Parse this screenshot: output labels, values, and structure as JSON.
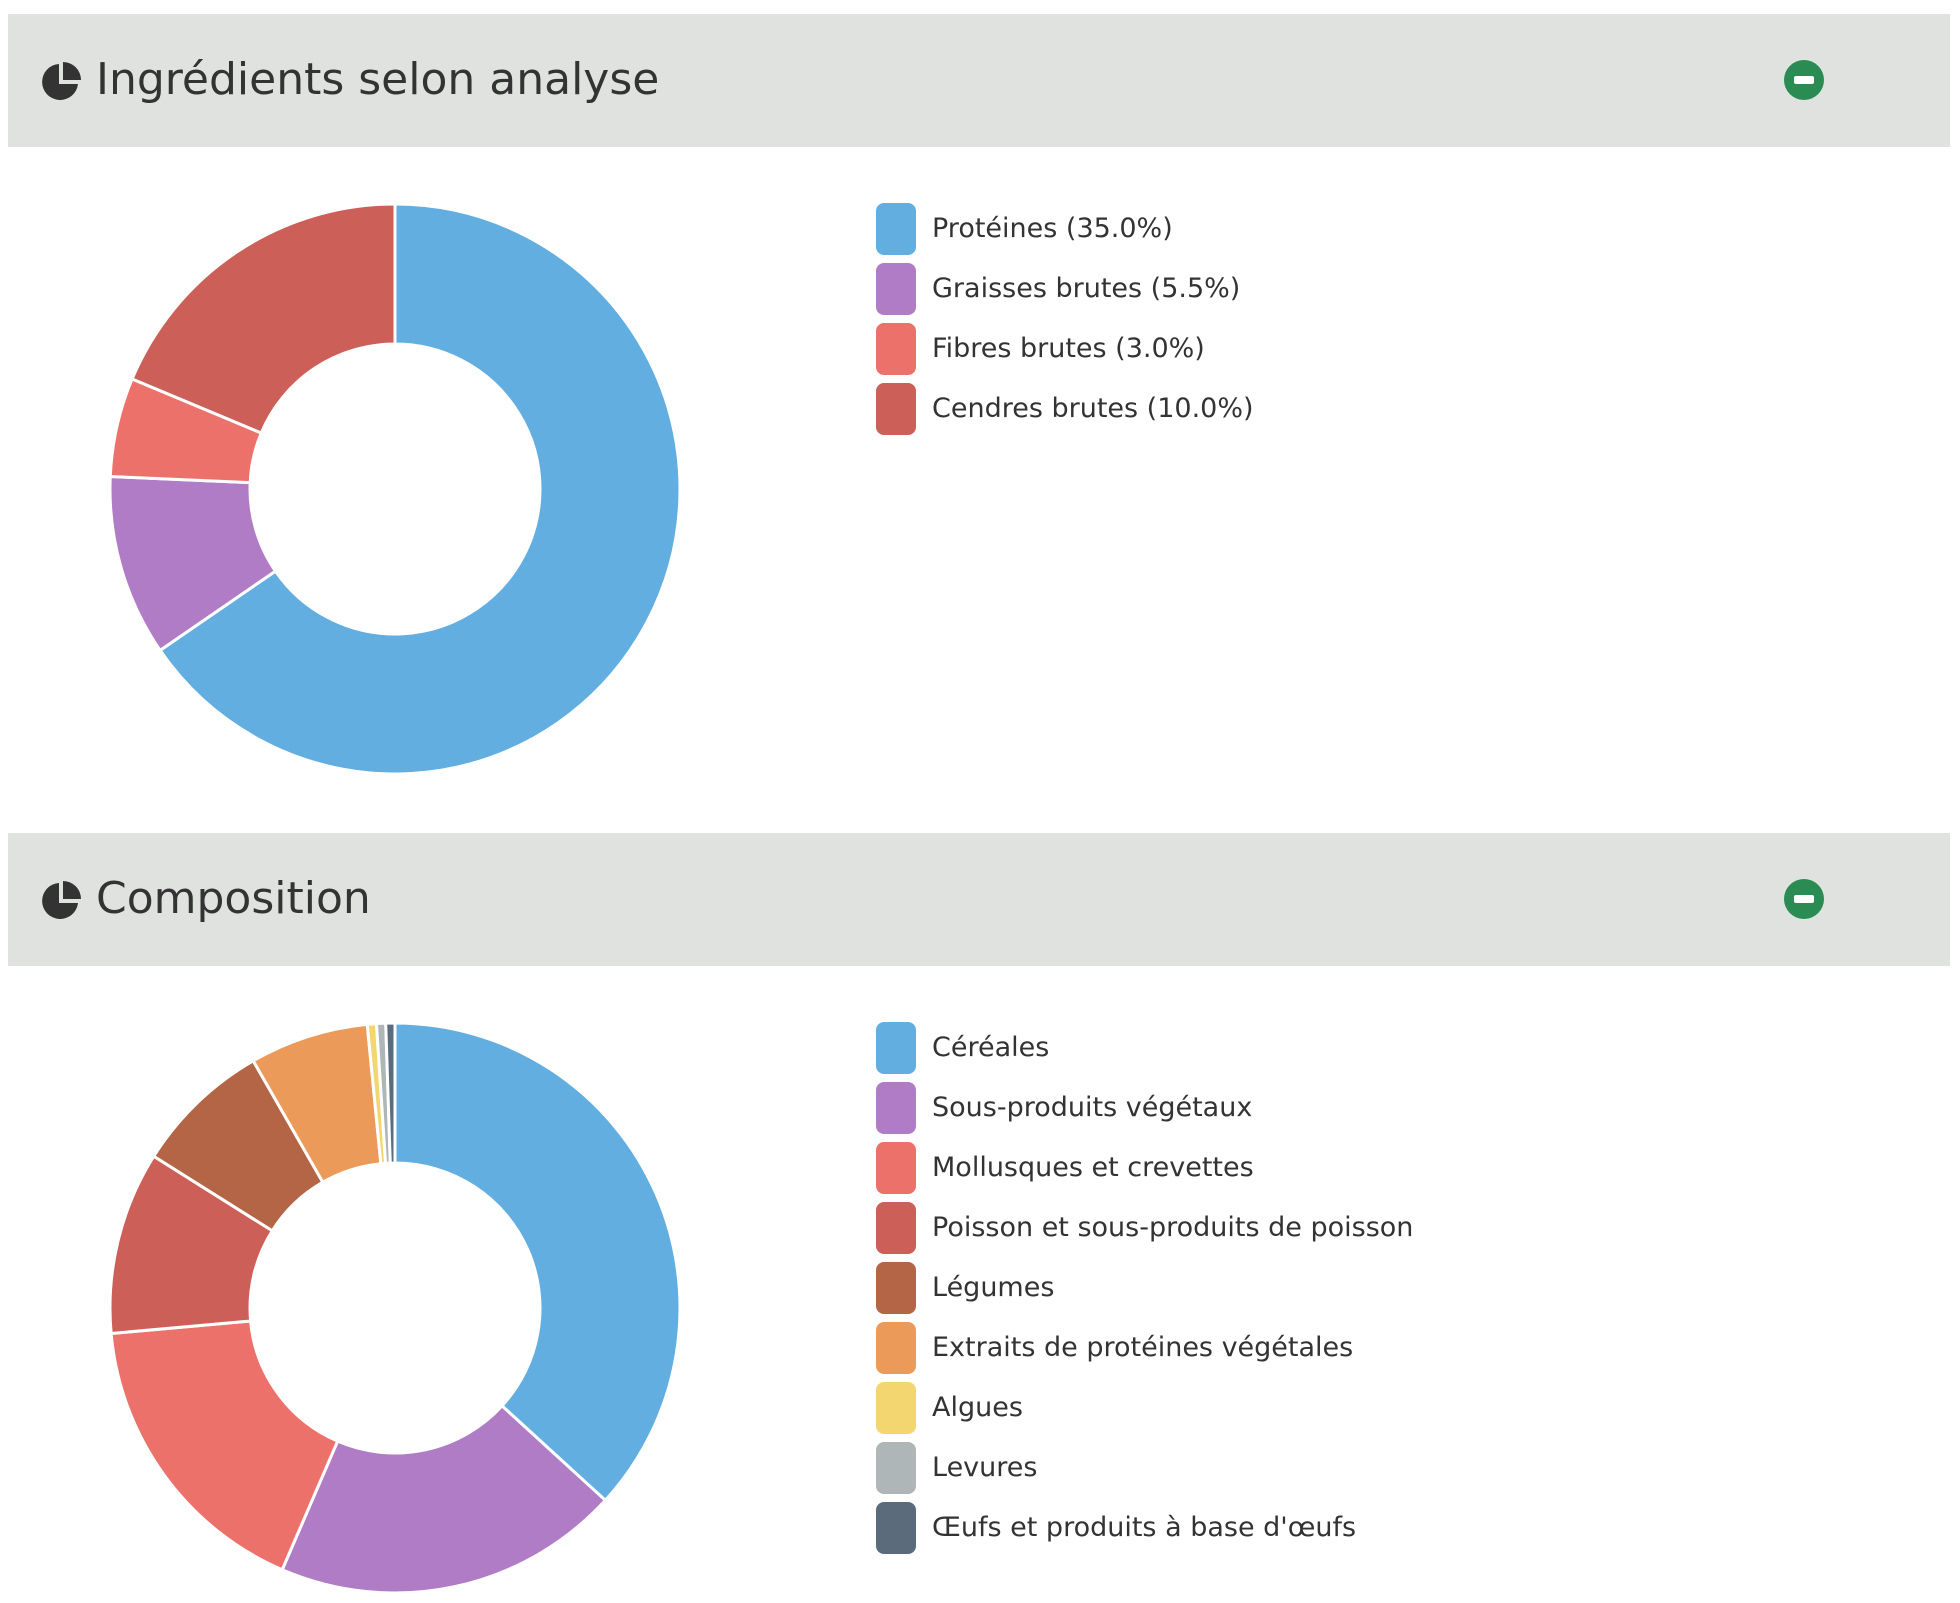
{
  "panels": [
    {
      "title": "Ingrédients selon analyse",
      "icon": "pie-chart-icon",
      "collapse_icon": "minus-circle-icon"
    },
    {
      "title": "Composition",
      "icon": "pie-chart-icon",
      "collapse_icon": "minus-circle-icon"
    }
  ],
  "chart_data": [
    {
      "type": "pie",
      "variant": "donut",
      "title": "Ingrédients selon analyse",
      "legend_position": "right",
      "categories": [
        "Protéines (35.0%)",
        "Graisses brutes (5.5%)",
        "Fibres brutes (3.0%)",
        "Cendres brutes (10.0%)"
      ],
      "values": [
        35.0,
        5.5,
        3.0,
        10.0
      ],
      "colors": [
        "#62aee0",
        "#b07cc6",
        "#ec716a",
        "#cc5f58"
      ]
    },
    {
      "type": "pie",
      "variant": "donut",
      "title": "Composition",
      "legend_position": "right",
      "categories": [
        "Céréales",
        "Sous-produits végétaux",
        "Mollusques et crevettes",
        "Poisson et sous-produits de poisson",
        "Légumes",
        "Extraits de protéines végétales",
        "Algues",
        "Levures",
        "Œufs et produits à base d'œufs"
      ],
      "values": [
        35.5,
        19.0,
        16.5,
        10.0,
        7.5,
        6.5,
        0.5,
        0.5,
        0.5
      ],
      "colors": [
        "#62aee0",
        "#b07cc6",
        "#ec716a",
        "#cc5f58",
        "#b46545",
        "#eb9a5a",
        "#f4d671",
        "#aeb6b7",
        "#5b6b7c"
      ]
    }
  ],
  "colors": {
    "header_background": "#dfe2df",
    "collapse_button": "#2a8c52",
    "slice_border": "#ffffff",
    "text": "#333333"
  }
}
